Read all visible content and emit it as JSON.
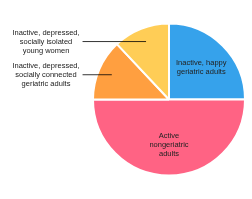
{
  "chart_data": {
    "type": "pie",
    "categories": [
      "Inactive, happy\ngeriatric adults",
      "Active\nnongeriatric\nadults",
      "Inactive, depressed,\nsocially connected\ngeriatric adults",
      "Inactive, depressed,\nsocially isolated\nyoung women"
    ],
    "values": [
      25,
      50,
      13,
      12
    ]
  }
}
